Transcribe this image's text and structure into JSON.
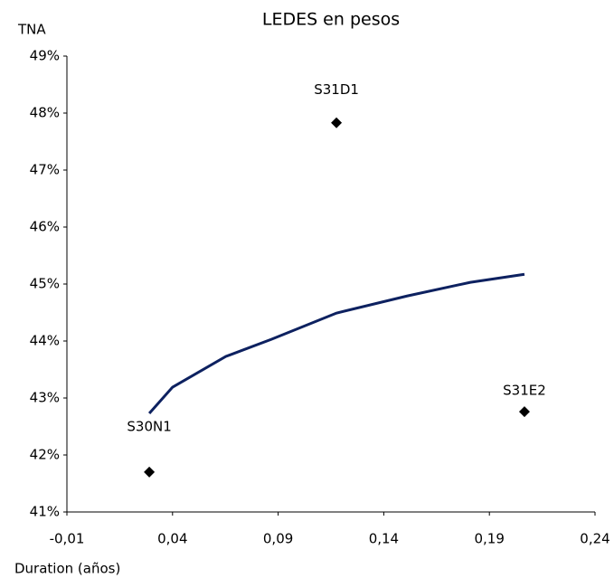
{
  "chart_data": {
    "type": "scatter",
    "title": "LEDES en pesos",
    "y_label": "TNA",
    "x_label": "Duration (años)",
    "xlim": [
      -0.01,
      0.24
    ],
    "xticks": [
      {
        "value": -0.01,
        "label": "-0,01"
      },
      {
        "value": 0.04,
        "label": "0,04"
      },
      {
        "value": 0.09,
        "label": "0,09"
      },
      {
        "value": 0.14,
        "label": "0,14"
      },
      {
        "value": 0.19,
        "label": "0,19"
      },
      {
        "value": 0.24,
        "label": "0,24"
      }
    ],
    "ylim": [
      41,
      49
    ],
    "yticks": [
      {
        "value": 41,
        "label": "41%"
      },
      {
        "value": 42,
        "label": "42%"
      },
      {
        "value": 43,
        "label": "43%"
      },
      {
        "value": 44,
        "label": "44%"
      },
      {
        "value": 45,
        "label": "45%"
      },
      {
        "value": 46,
        "label": "46%"
      },
      {
        "value": 47,
        "label": "47%"
      },
      {
        "value": 48,
        "label": "48%"
      },
      {
        "value": 49,
        "label": "49%"
      }
    ],
    "grid": false,
    "points": {
      "labels": [
        "S30N1",
        "S31D1",
        "S31E2"
      ],
      "x": [
        0.029,
        0.1176,
        0.2066
      ],
      "values": [
        41.7,
        47.83,
        42.76
      ],
      "color": "#000000"
    },
    "trend": {
      "x": [
        0.029,
        0.04,
        0.0653,
        0.0868,
        0.1176,
        0.151,
        0.181,
        0.2066
      ],
      "values": [
        42.73,
        43.19,
        43.73,
        44.03,
        44.49,
        44.79,
        45.03,
        45.17
      ],
      "color": "#0d2160"
    }
  }
}
